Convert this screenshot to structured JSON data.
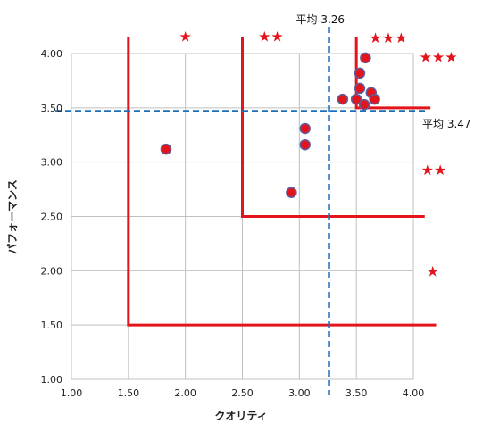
{
  "chart_data": {
    "type": "scatter",
    "xlabel": "クオリティ",
    "ylabel": "パフォーマンス",
    "xlim": [
      1.0,
      4.0
    ],
    "ylim": [
      1.0,
      4.0
    ],
    "x_ticks": [
      "1.00",
      "1.50",
      "2.00",
      "2.50",
      "3.00",
      "3.50",
      "4.00"
    ],
    "y_ticks": [
      "1.00",
      "1.50",
      "2.00",
      "2.50",
      "3.00",
      "3.50",
      "4.00"
    ],
    "grid": true,
    "points": [
      {
        "x": 1.83,
        "y": 3.12
      },
      {
        "x": 2.93,
        "y": 2.72
      },
      {
        "x": 3.05,
        "y": 3.31
      },
      {
        "x": 3.05,
        "y": 3.16
      },
      {
        "x": 3.38,
        "y": 3.58
      },
      {
        "x": 3.5,
        "y": 3.58
      },
      {
        "x": 3.53,
        "y": 3.82
      },
      {
        "x": 3.53,
        "y": 3.68
      },
      {
        "x": 3.57,
        "y": 3.53
      },
      {
        "x": 3.58,
        "y": 3.96
      },
      {
        "x": 3.63,
        "y": 3.64
      },
      {
        "x": 3.66,
        "y": 3.58
      }
    ],
    "averages": {
      "x": 3.26,
      "y": 3.47,
      "x_label": "平均 3.26",
      "y_label": "平均 3.47"
    },
    "zone_lines": [
      {
        "x": 1.5,
        "y_top": 4.15,
        "y_bottom": 1.5,
        "x_right": 4.2
      },
      {
        "x": 2.5,
        "y_top": 4.15,
        "y_bottom": 2.5,
        "x_right": 4.1
      },
      {
        "x": 3.5,
        "y_top": 4.15,
        "y_bottom": 3.5,
        "x_right": 4.15
      }
    ],
    "star_annotations": [
      {
        "stars": "★",
        "x": 2.0,
        "y": 4.16
      },
      {
        "stars": "★★",
        "x": 2.75,
        "y": 4.16
      },
      {
        "stars": "★★★",
        "x": 3.78,
        "y": 4.15
      },
      {
        "stars": "★★★",
        "x": 4.22,
        "y": 3.97
      },
      {
        "stars": "★★",
        "x": 4.18,
        "y": 2.93
      },
      {
        "stars": "★",
        "x": 4.17,
        "y": 2.0
      }
    ],
    "colors": {
      "point_fill": "#e3141b",
      "point_stroke": "#5b5f9e",
      "zone_line": "#e3141b",
      "average_line": "#1f6fb8",
      "grid": "#c0c0c0",
      "star": "#e3141b"
    }
  }
}
